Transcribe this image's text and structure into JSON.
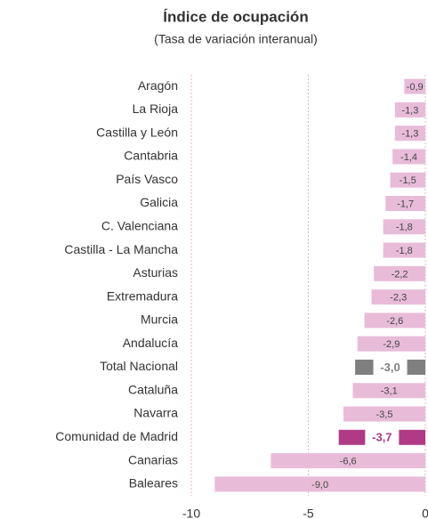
{
  "chart_data": {
    "type": "hbar",
    "title": "Índice de ocupación",
    "subtitle": "(Tasa de variación interanual)",
    "categories": [
      "Aragón",
      "La Rioja",
      "Castilla y León",
      "Cantabria",
      "País Vasco",
      "Galicia",
      "C. Valenciana",
      "Castilla - La Mancha",
      "Asturias",
      "Extremadura",
      "Murcia",
      "Andalucía",
      "Total Nacional",
      "Cataluña",
      "Navarra",
      "Comunidad de Madrid",
      "Canarias",
      "Baleares"
    ],
    "values": [
      -0.9,
      -1.3,
      -1.3,
      -1.4,
      -1.5,
      -1.7,
      -1.8,
      -1.8,
      -2.2,
      -2.3,
      -2.6,
      -2.9,
      -3.0,
      -3.1,
      -3.5,
      -3.7,
      -6.6,
      -9.0
    ],
    "value_labels": [
      "-0,9",
      "-1,3",
      "-1,3",
      "-1,4",
      "-1,5",
      "-1,7",
      "-1,8",
      "-1,8",
      "-2,2",
      "-2,3",
      "-2,6",
      "-2,9",
      "-3,0",
      "-3,1",
      "-3,5",
      "-3,7",
      "-6,6",
      "-9,0"
    ],
    "color": "#e8bcd9",
    "colors": [
      "#e8bcd9",
      "#e8bcd9",
      "#e8bcd9",
      "#e8bcd9",
      "#e8bcd9",
      "#e8bcd9",
      "#e8bcd9",
      "#e8bcd9",
      "#e8bcd9",
      "#e8bcd9",
      "#e8bcd9",
      "#e8bcd9",
      "#7f7f7f",
      "#e8bcd9",
      "#e8bcd9",
      "#b03a86",
      "#e8bcd9",
      "#e8bcd9"
    ],
    "xlim": [
      -10,
      0
    ],
    "xticks": [
      -10,
      -5,
      0
    ],
    "grid": true
  }
}
